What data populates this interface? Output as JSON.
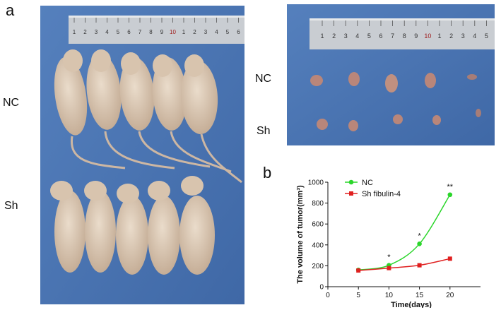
{
  "panel_a": {
    "letter": "a",
    "row_labels": {
      "nc": "NC",
      "sh": "Sh"
    },
    "ruler_numbers": [
      "1",
      "2",
      "3",
      "4",
      "5",
      "6",
      "7",
      "8",
      "9",
      "10",
      "1",
      "2",
      "3",
      "4",
      "5",
      "6"
    ],
    "tumor_ruler_numbers": [
      "1",
      "2",
      "3",
      "4",
      "5",
      "6",
      "7",
      "8",
      "9",
      "10",
      "1",
      "2",
      "3",
      "4",
      "5"
    ],
    "tumor_row_labels": {
      "nc": "NC",
      "sh": "Sh"
    }
  },
  "panel_b": {
    "letter": "b"
  },
  "colors": {
    "nc_series": "#2bd62b",
    "sh_series": "#e02020",
    "cloth_blue": "#4a74b4",
    "mouse_skin": "#d9c7b2"
  },
  "chart_data": {
    "type": "line",
    "title": "",
    "xlabel": "Time(days)",
    "ylabel": "The volume of tumor(mm³)",
    "xlim": [
      0,
      25
    ],
    "ylim": [
      0,
      1000
    ],
    "xticks": [
      0,
      5,
      10,
      15,
      20
    ],
    "yticks": [
      0,
      200,
      400,
      600,
      800,
      1000
    ],
    "x": [
      5,
      10,
      15,
      20
    ],
    "series": [
      {
        "name": "NC",
        "values": [
          160,
          205,
          410,
          880
        ],
        "marker": "circle"
      },
      {
        "name": "Sh fibulin-4",
        "values": [
          155,
          178,
          205,
          268
        ],
        "marker": "square"
      }
    ],
    "significance": [
      {
        "x": 10,
        "label": "*"
      },
      {
        "x": 15,
        "label": "*"
      },
      {
        "x": 20,
        "label": "**"
      }
    ],
    "legend_position": "top-left",
    "grid": false
  }
}
